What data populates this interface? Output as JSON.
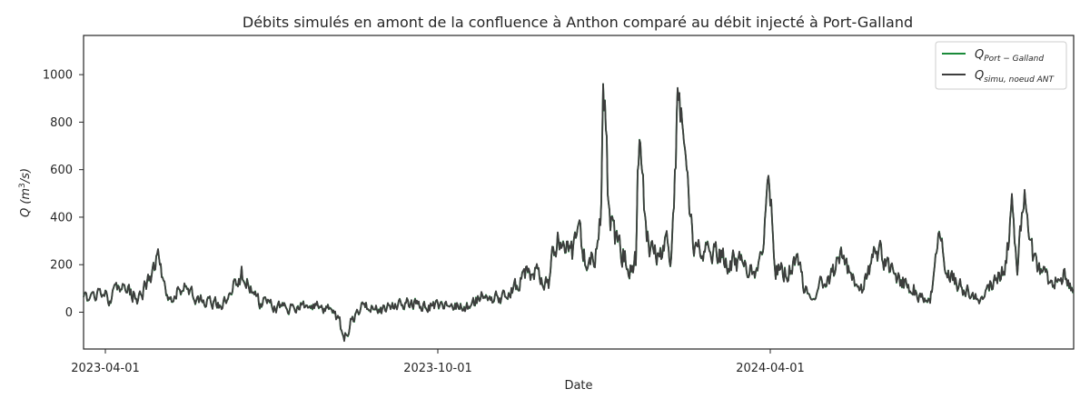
{
  "chart_data": {
    "type": "line",
    "title": "Débits simulés en amont de la confluence à Anthon comparé au débit injecté à Port-Galland",
    "xlabel": "Date",
    "ylabel": {
      "main": "Q (m",
      "sup": "3",
      "tail": "/s)"
    },
    "x_range": [
      "2023-03-20",
      "2024-09-15"
    ],
    "ylim": [
      -155,
      1165
    ],
    "x_ticks": [
      {
        "date": "2023-04-01",
        "label": "2023-04-01"
      },
      {
        "date": "2023-10-01",
        "label": "2023-10-01"
      },
      {
        "date": "2024-04-01",
        "label": "2024-04-01"
      }
    ],
    "y_ticks": [
      0,
      200,
      400,
      600,
      800,
      1000
    ],
    "legend_position": "top-right",
    "series": [
      {
        "name": "Q_Port-Galland",
        "legend": {
          "main": "Q",
          "sub": "Port − Galland"
        },
        "color": "#1a8a3a",
        "anchors": [
          [
            "2023-03-20",
            60
          ],
          [
            "2023-03-27",
            80
          ],
          [
            "2023-04-03",
            60
          ],
          [
            "2023-04-10",
            100
          ],
          [
            "2023-04-20",
            60
          ],
          [
            "2023-04-30",
            220
          ],
          [
            "2023-05-05",
            60
          ],
          [
            "2023-05-15",
            100
          ],
          [
            "2023-05-25",
            40
          ],
          [
            "2023-06-05",
            30
          ],
          [
            "2023-06-15",
            160
          ],
          [
            "2023-06-25",
            40
          ],
          [
            "2023-07-10",
            20
          ],
          [
            "2023-07-25",
            30
          ],
          [
            "2023-08-05",
            0
          ],
          [
            "2023-08-10",
            -95
          ],
          [
            "2023-08-20",
            30
          ],
          [
            "2023-09-01",
            10
          ],
          [
            "2023-09-15",
            40
          ],
          [
            "2023-09-25",
            20
          ],
          [
            "2023-10-05",
            40
          ],
          [
            "2023-10-15",
            20
          ],
          [
            "2023-10-25",
            60
          ],
          [
            "2023-11-05",
            60
          ],
          [
            "2023-11-12",
            100
          ],
          [
            "2023-11-20",
            180
          ],
          [
            "2023-11-28",
            150
          ],
          [
            "2023-12-01",
            120
          ],
          [
            "2023-12-03",
            280
          ],
          [
            "2023-12-06",
            310
          ],
          [
            "2023-12-10",
            320
          ],
          [
            "2023-12-14",
            250
          ],
          [
            "2023-12-18",
            300
          ],
          [
            "2023-12-22",
            200
          ],
          [
            "2023-12-26",
            250
          ],
          [
            "2023-12-29",
            350
          ],
          [
            "2023-12-30",
            430
          ],
          [
            "2023-12-31",
            1100
          ],
          [
            "2024-01-03",
            420
          ],
          [
            "2024-01-06",
            330
          ],
          [
            "2024-01-09",
            260
          ],
          [
            "2024-01-12",
            240
          ],
          [
            "2024-01-15",
            200
          ],
          [
            "2024-01-18",
            220
          ],
          [
            "2024-01-20",
            820
          ],
          [
            "2024-01-23",
            400
          ],
          [
            "2024-01-27",
            240
          ],
          [
            "2024-01-31",
            230
          ],
          [
            "2024-02-03",
            300
          ],
          [
            "2024-02-06",
            250
          ],
          [
            "2024-02-08",
            480
          ],
          [
            "2024-02-10",
            920
          ],
          [
            "2024-02-11",
            1015
          ],
          [
            "2024-02-14",
            600
          ],
          [
            "2024-02-17",
            380
          ],
          [
            "2024-02-20",
            250
          ],
          [
            "2024-02-24",
            280
          ],
          [
            "2024-02-28",
            230
          ],
          [
            "2024-03-05",
            250
          ],
          [
            "2024-03-10",
            210
          ],
          [
            "2024-03-15",
            200
          ],
          [
            "2024-03-20",
            180
          ],
          [
            "2024-03-27",
            200
          ],
          [
            "2024-03-31",
            550
          ],
          [
            "2024-04-04",
            200
          ],
          [
            "2024-04-10",
            180
          ],
          [
            "2024-04-15",
            230
          ],
          [
            "2024-04-20",
            100
          ],
          [
            "2024-04-25",
            80
          ],
          [
            "2024-05-01",
            130
          ],
          [
            "2024-05-10",
            220
          ],
          [
            "2024-05-18",
            110
          ],
          [
            "2024-05-22",
            80
          ],
          [
            "2024-05-28",
            270
          ],
          [
            "2024-06-05",
            200
          ],
          [
            "2024-06-12",
            130
          ],
          [
            "2024-06-20",
            90
          ],
          [
            "2024-06-28",
            40
          ],
          [
            "2024-07-03",
            300
          ],
          [
            "2024-07-10",
            140
          ],
          [
            "2024-07-18",
            90
          ],
          [
            "2024-07-25",
            60
          ],
          [
            "2024-08-02",
            120
          ],
          [
            "2024-08-08",
            200
          ],
          [
            "2024-08-12",
            430
          ],
          [
            "2024-08-15",
            200
          ],
          [
            "2024-08-19",
            440
          ],
          [
            "2024-08-24",
            220
          ],
          [
            "2024-08-30",
            160
          ],
          [
            "2024-09-04",
            120
          ],
          [
            "2024-09-09",
            170
          ],
          [
            "2024-09-14",
            90
          ],
          [
            "2024-09-15",
            80
          ]
        ]
      },
      {
        "name": "Q_simu,noeud ANT",
        "legend": {
          "main": "Q",
          "sub": "simu, noeud ANT"
        },
        "color": "#3d3d3d",
        "anchors": []
      }
    ]
  }
}
